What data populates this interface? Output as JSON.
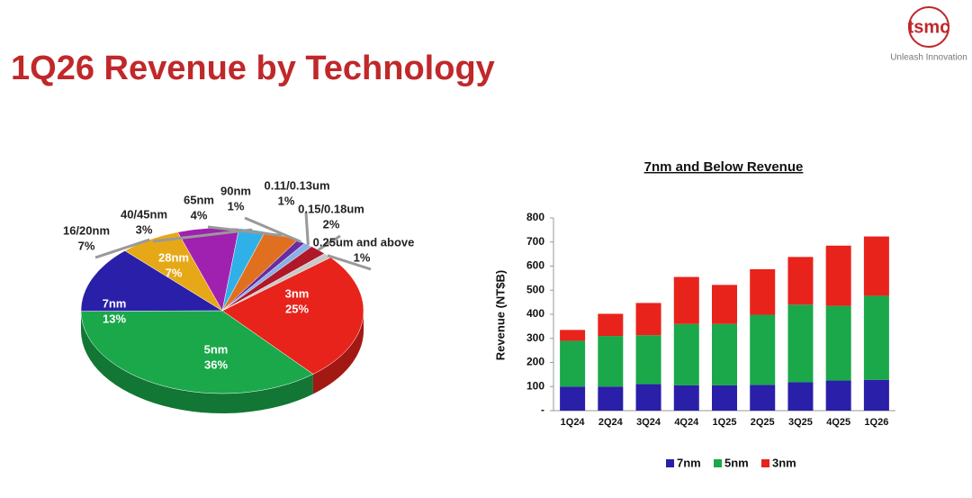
{
  "title": "1Q26 Revenue by Technology",
  "logo": "tsmc",
  "tagline": "Unleash Innovation",
  "chart_data": [
    {
      "type": "pie",
      "categories": [
        "3nm",
        "5nm",
        "7nm",
        "16/20nm",
        "28nm",
        "40/45nm",
        "65nm",
        "90nm",
        "0.11/0.13um",
        "0.15/0.18um",
        "0.25um and above"
      ],
      "values": [
        25,
        36,
        13,
        7,
        7,
        3,
        4,
        1,
        1,
        2,
        1
      ],
      "value_labels": [
        "25%",
        "36%",
        "13%",
        "7%",
        "7%",
        "3%",
        "4%",
        "1%",
        "1%",
        "2%",
        "1%"
      ],
      "colors": [
        "#e8231b",
        "#1aa84a",
        "#2a1fa8",
        "#e6a817",
        "#a020b0",
        "#2fb0e8",
        "#e07020",
        "#6a2ca0",
        "#8ab0e8",
        "#b0182a",
        "#c8c8c8"
      ]
    },
    {
      "type": "bar",
      "stacked": true,
      "title": "7nm and Below Revenue",
      "y_label": "Revenue (NT$B)",
      "categories": [
        "1Q24",
        "2Q24",
        "3Q24",
        "4Q24",
        "1Q25",
        "2Q25",
        "3Q25",
        "4Q25",
        "1Q26"
      ],
      "series": [
        {
          "name": "7nm",
          "color": "#2a1fa8",
          "values": [
            100,
            100,
            110,
            105,
            105,
            107,
            118,
            125,
            128
          ]
        },
        {
          "name": "5nm",
          "color": "#1aa84a",
          "values": [
            190,
            210,
            203,
            255,
            255,
            291,
            322,
            310,
            349
          ]
        },
        {
          "name": "3nm",
          "color": "#e8231b",
          "values": [
            45,
            92,
            134,
            195,
            162,
            189,
            198,
            250,
            246
          ]
        }
      ],
      "ylim": [
        0,
        800
      ],
      "yticks": [
        {
          "value": 0,
          "label": "-"
        },
        100,
        200,
        300,
        400,
        500,
        600,
        700,
        800
      ]
    }
  ]
}
